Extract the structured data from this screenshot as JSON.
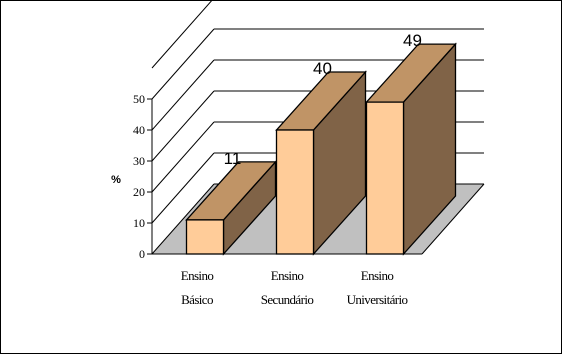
{
  "chart_data": {
    "type": "bar",
    "categories": [
      [
        "Ensino",
        "Básico"
      ],
      [
        "Ensino",
        "Secundário"
      ],
      [
        "Ensino",
        "Universitário"
      ]
    ],
    "values": [
      11,
      40,
      49
    ],
    "data_labels": [
      "11",
      "40",
      "49"
    ],
    "ylabel": "%",
    "yticks": [
      0,
      10,
      20,
      30,
      40,
      50
    ],
    "ylim": [
      0,
      60
    ],
    "grid": true,
    "three_d": true,
    "colors": {
      "bar_front": "#FFCC99",
      "bar_top": "#C09466",
      "bar_side": "#806347",
      "floor": "#C0C0C0",
      "background": "#FFFFFF",
      "outline": "#000000"
    }
  }
}
